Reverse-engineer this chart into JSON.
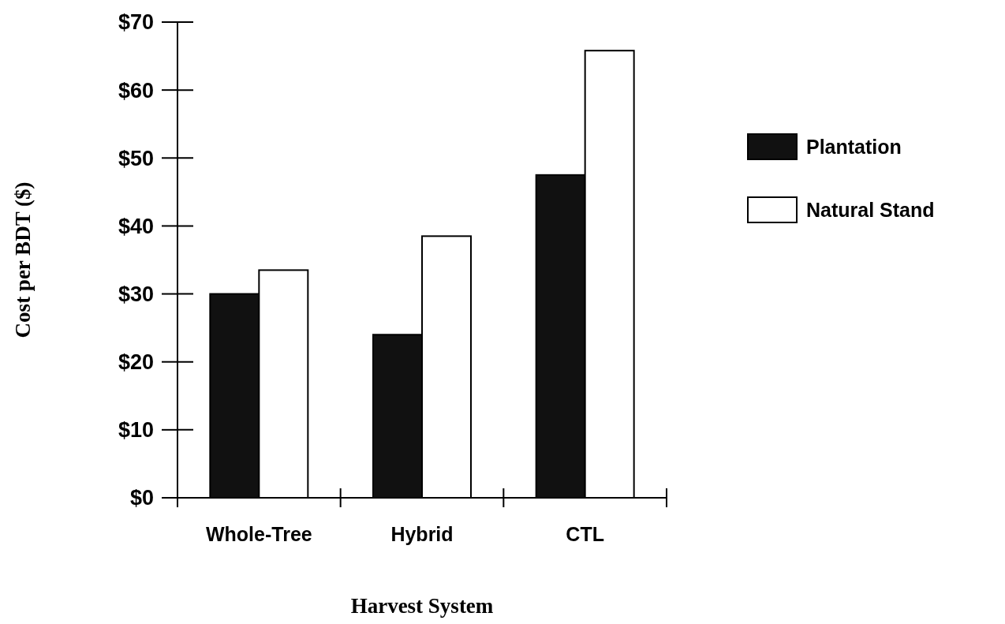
{
  "chart_data": {
    "type": "bar",
    "xlabel": "Harvest System",
    "ylabel": "Cost per BDT ($)",
    "categories": [
      "Whole-Tree",
      "Hybrid",
      "CTL"
    ],
    "series": [
      {
        "name": "Plantation",
        "color": "#111111",
        "values": [
          30,
          24,
          47.5
        ]
      },
      {
        "name": "Natural Stand",
        "color": "#ffffff",
        "values": [
          33.5,
          38.5,
          65.8
        ]
      }
    ],
    "ylim": [
      0,
      70
    ],
    "yticks": [
      {
        "value": 0,
        "label": "$0"
      },
      {
        "value": 10,
        "label": "$10"
      },
      {
        "value": 20,
        "label": "$20"
      },
      {
        "value": 30,
        "label": "$30"
      },
      {
        "value": 40,
        "label": "$40"
      },
      {
        "value": 50,
        "label": "$50"
      },
      {
        "value": 60,
        "label": "$60"
      },
      {
        "value": 70,
        "label": "$70"
      }
    ],
    "grid": false,
    "legend": "right"
  }
}
